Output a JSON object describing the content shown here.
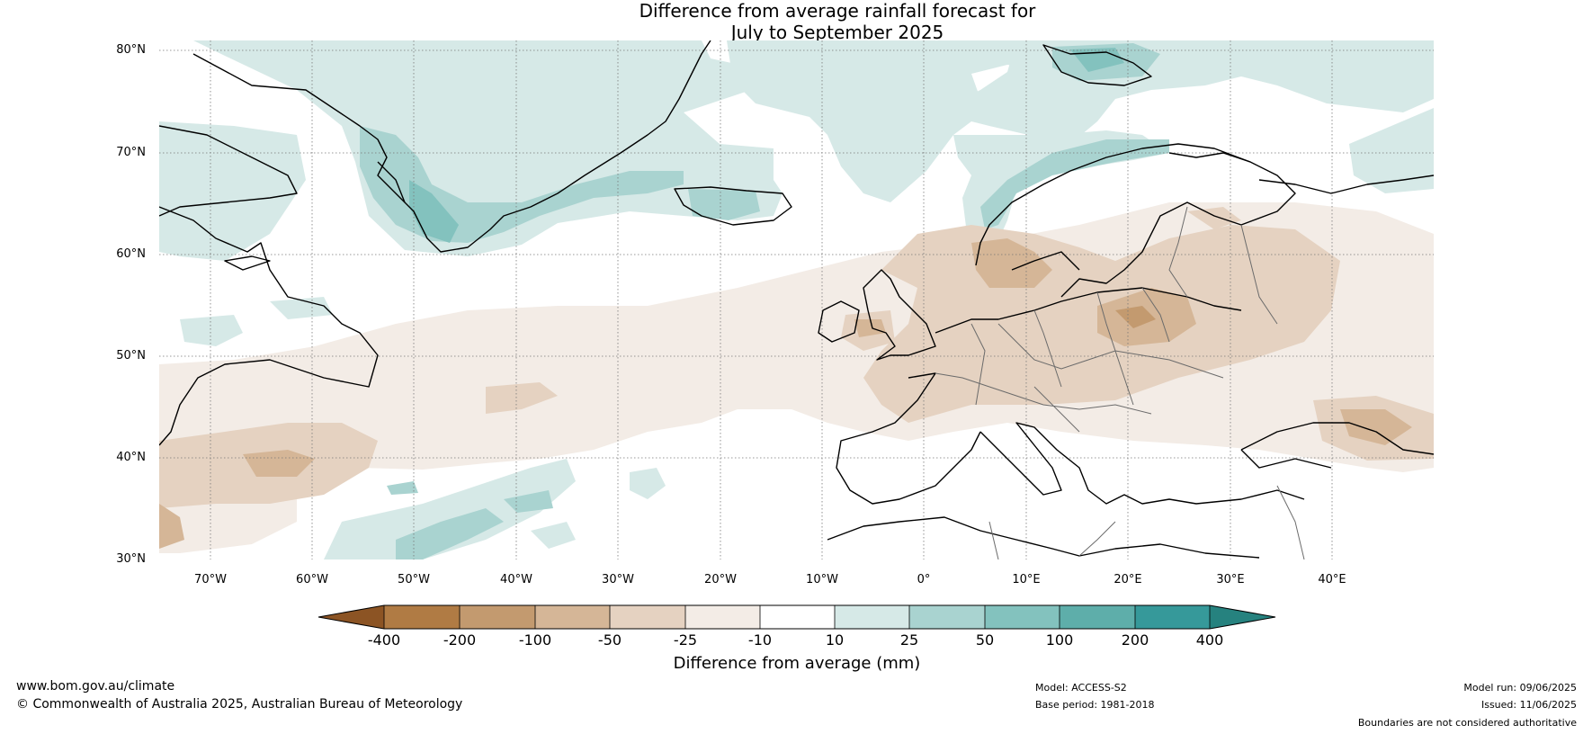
{
  "title": {
    "line1": "Difference from average rainfall forecast for",
    "line2": "July to September 2025"
  },
  "map": {
    "lat_labels": [
      "80°N",
      "70°N",
      "60°N",
      "50°N",
      "40°N",
      "30°N"
    ],
    "lon_labels": [
      "70°W",
      "60°W",
      "50°W",
      "40°W",
      "30°W",
      "20°W",
      "10°W",
      "0°",
      "10°E",
      "20°E",
      "30°E",
      "40°E"
    ],
    "lon_range": [
      -75,
      50
    ],
    "lat_range": [
      30,
      81
    ],
    "gridlines": true,
    "regions": [
      {
        "category": "10 to 25",
        "area": "Greenland Sea / north of Iceland",
        "lon": -23,
        "lat": 74
      },
      {
        "category": "25 to 50",
        "area": "southern Greenland",
        "lon": -44,
        "lat": 63
      },
      {
        "category": "10 to 25",
        "area": "Iceland",
        "lon": -19,
        "lat": 65
      },
      {
        "category": "25 to 50",
        "area": "Norwegian coast",
        "lon": 10,
        "lat": 64
      },
      {
        "category": "25 to 50",
        "area": "Svalbard",
        "lon": 17,
        "lat": 78
      },
      {
        "category": "-25 to -10",
        "area": "North Atlantic band",
        "lon": -35,
        "lat": 48
      },
      {
        "category": "-50 to -25",
        "area": "central Europe",
        "lon": 20,
        "lat": 50
      },
      {
        "category": "-100 to -50",
        "area": "Poland / Slovakia",
        "lon": 22,
        "lat": 50
      },
      {
        "category": "-50 to -25",
        "area": "Black Sea region",
        "lon": 38,
        "lat": 43
      },
      {
        "category": "-50 to -25",
        "area": "western Atlantic off USA",
        "lon": -62,
        "lat": 40
      },
      {
        "category": "25 to 50",
        "area": "subtropical Atlantic",
        "lon": -45,
        "lat": 34
      }
    ]
  },
  "colorbar": {
    "ticks": [
      "-400",
      "-200",
      "-100",
      "-50",
      "-25",
      "-10",
      "10",
      "25",
      "50",
      "100",
      "200",
      "400"
    ],
    "colors": [
      "#8c5424",
      "#b07b44",
      "#c39a6f",
      "#d5b697",
      "#e5d2c1",
      "#f3ece6",
      "#ffffff",
      "#d6e9e7",
      "#a9d3d0",
      "#83c2be",
      "#5eaeaa",
      "#36999a",
      "#26827f"
    ],
    "label": "Difference from average (mm)"
  },
  "footer": {
    "website": "www.bom.gov.au/climate",
    "copyright": "© Commonwealth of Australia 2025, Australian Bureau of Meteorology",
    "model": "Model: ACCESS-S2",
    "base_period": "Base period: 1981-2018",
    "model_run": "Model run: 09/06/2025",
    "issued": "Issued: 11/06/2025",
    "disclaimer": "Boundaries are not considered authoritative"
  }
}
